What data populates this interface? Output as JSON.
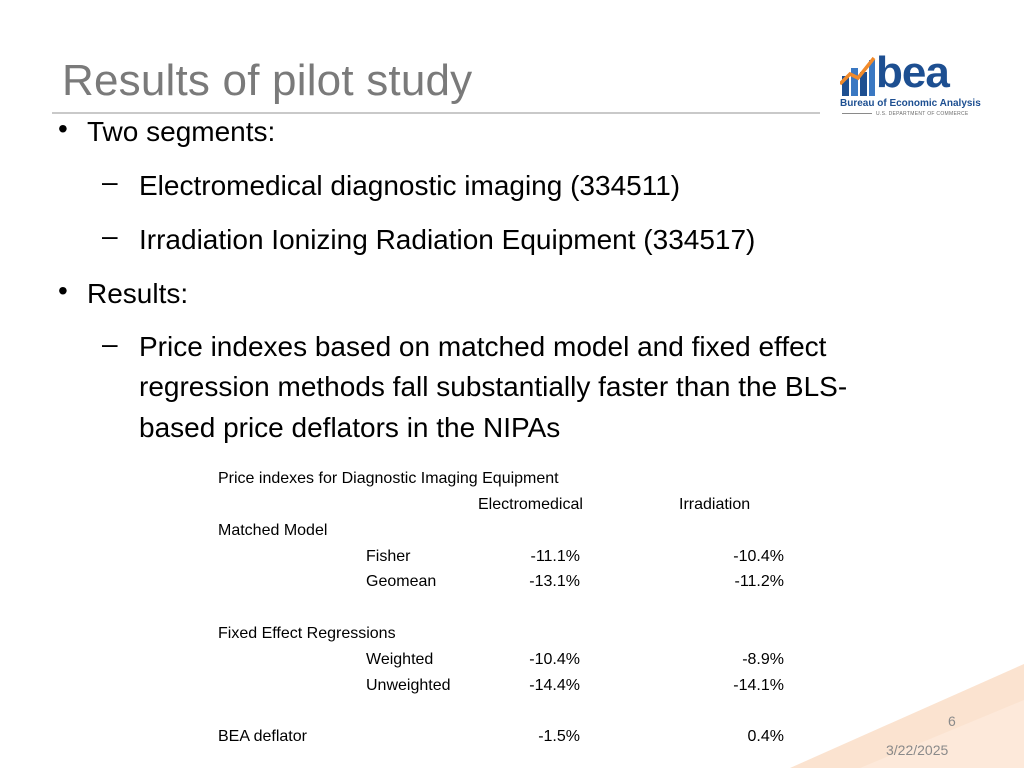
{
  "slide": {
    "title": "Results of pilot study",
    "logo": {
      "wordmark": "bea",
      "name": "Bureau of Economic Analysis",
      "dept": "U.S. DEPARTMENT OF COMMERCE",
      "brand_color": "#1d4f91",
      "accent_color": "#f08a2b"
    },
    "bullets": [
      {
        "text": "Two segments:",
        "sub": [
          "Electromedical diagnostic imaging (334511)",
          "Irradiation Ionizing Radiation Equipment (334517)"
        ]
      },
      {
        "text": "Results:",
        "sub_lines": [
          "Price indexes based on matched model and fixed effect",
          "regression methods fall substantially faster than the BLS-",
          "based price deflators in the NIPAs"
        ]
      }
    ],
    "table": {
      "caption": "Price indexes for Diagnostic Imaging Equipment",
      "columns": [
        "Electromedical",
        "Irradiation"
      ],
      "groups": [
        {
          "label": "Matched Model",
          "rows": [
            {
              "label": "Fisher",
              "electromedical": "-11.1%",
              "irradiation": "-10.4%"
            },
            {
              "label": "Geomean",
              "electromedical": "-13.1%",
              "irradiation": "-11.2%"
            }
          ]
        },
        {
          "label": "Fixed Effect Regressions",
          "rows": [
            {
              "label": "Weighted",
              "electromedical": "-10.4%",
              "irradiation": "-8.9%"
            },
            {
              "label": "Unweighted",
              "electromedical": "-14.4%",
              "irradiation": "-14.1%"
            }
          ]
        }
      ],
      "deflator": {
        "label": "BEA deflator",
        "electromedical": "-1.5%",
        "irradiation": "0.4%"
      }
    },
    "page_number": "6",
    "date": "3/22/2025",
    "corner_color": "#fbe3d0"
  }
}
